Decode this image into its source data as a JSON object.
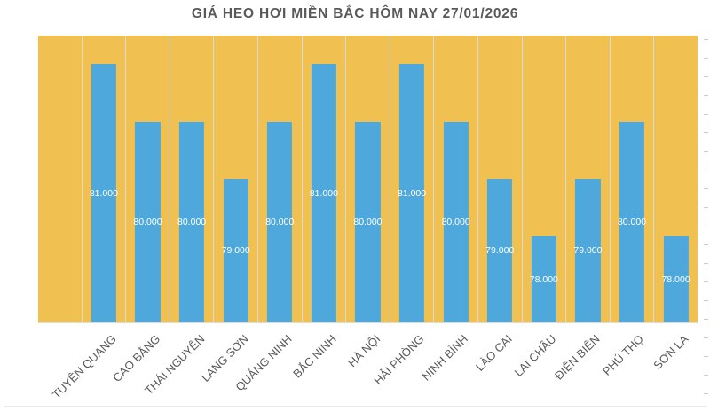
{
  "chart_data": {
    "type": "bar",
    "title": "GIÁ HEO HƠI MIỀN BẮC HÔM NAY 27/01/2026",
    "categories": [
      "TUYÊN QUANG",
      "CAO BẰNG",
      "THÁI NGUYÊN",
      "LẠNG SƠN",
      "QUẢNG NINH",
      "BẮC NINH",
      "HÀ NỘI",
      "HẢI PHÒNG",
      "NINH BÌNH",
      "LÀO CAI",
      "LAI CHÂU",
      "ĐIỆN BIÊN",
      "PHÚ THỌ",
      "SƠN LA"
    ],
    "values": [
      81000,
      80000,
      80000,
      79000,
      80000,
      81000,
      80000,
      81000,
      80000,
      79000,
      78000,
      79000,
      80000,
      78000
    ],
    "value_labels": [
      "81.000",
      "80.000",
      "80.000",
      "79.000",
      "80.000",
      "81.000",
      "80.000",
      "81.000",
      "80.000",
      "79.000",
      "78.000",
      "79.000",
      "80.000",
      "78.000"
    ],
    "xlabel": "",
    "ylabel": "",
    "ylim": [
      76500,
      81500
    ],
    "leading_empty_categories": 1,
    "grid": "vertical-only",
    "legend": "none",
    "bar_label_position": "inside-center",
    "x_label_rotation_deg": 45,
    "colors": {
      "bar": "#4FA8DC",
      "plot_background": "#F0C050",
      "gridline": "#D9D9D9",
      "title_text": "#595959",
      "axis_label_text": "#595959",
      "bar_label_text": "#FFFFFF",
      "page_background": "#FFFFFF"
    }
  }
}
